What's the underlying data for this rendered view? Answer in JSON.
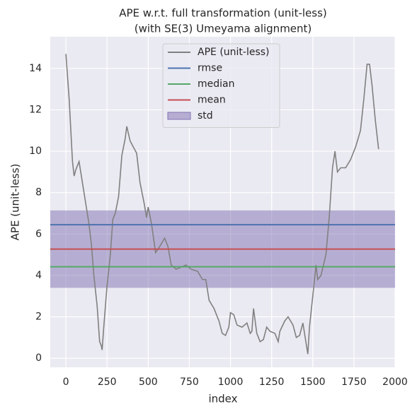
{
  "chart_data": {
    "type": "line",
    "title": [
      "APE w.r.t. full transformation (unit-less)",
      "(with SE(3) Umeyama alignment)"
    ],
    "xlabel": "index",
    "ylabel": "APE (unit-less)",
    "xlim": [
      -95,
      2000
    ],
    "xticks": [
      0,
      250,
      500,
      750,
      1000,
      1250,
      1500,
      1750,
      2000
    ],
    "ylim": [
      -0.44,
      15.53
    ],
    "yticks": [
      0,
      2,
      4,
      6,
      8,
      10,
      12,
      14
    ],
    "grid": true,
    "legend": "upper center",
    "series": [
      {
        "name": "APE (unit-less)",
        "color": "#808080",
        "x": [
          0,
          20,
          40,
          50,
          60,
          80,
          100,
          120,
          140,
          155,
          170,
          190,
          205,
          215,
          220,
          230,
          250,
          270,
          285,
          300,
          320,
          340,
          360,
          370,
          390,
          410,
          430,
          450,
          475,
          490,
          500,
          520,
          545,
          570,
          600,
          620,
          640,
          670,
          700,
          730,
          760,
          800,
          830,
          850,
          870,
          900,
          930,
          950,
          970,
          990,
          1000,
          1020,
          1040,
          1070,
          1100,
          1120,
          1130,
          1140,
          1160,
          1180,
          1200,
          1220,
          1240,
          1270,
          1290,
          1300,
          1330,
          1350,
          1380,
          1400,
          1420,
          1440,
          1460,
          1470,
          1480,
          1500,
          1520,
          1530,
          1550,
          1580,
          1600,
          1620,
          1635,
          1650,
          1670,
          1700,
          1730,
          1760,
          1790,
          1810,
          1830,
          1845,
          1860,
          1880,
          1900
        ],
        "values": [
          14.7,
          12.5,
          9.5,
          8.8,
          9.1,
          9.5,
          8.5,
          7.5,
          6.5,
          5.5,
          4.0,
          2.5,
          0.8,
          0.6,
          0.4,
          1.5,
          3.5,
          5.0,
          6.7,
          7.0,
          7.8,
          9.8,
          10.6,
          11.2,
          10.5,
          10.2,
          9.9,
          8.5,
          7.5,
          6.8,
          7.3,
          6.5,
          5.1,
          5.4,
          5.8,
          5.4,
          4.5,
          4.3,
          4.4,
          4.5,
          4.3,
          4.2,
          3.8,
          3.8,
          2.8,
          2.4,
          1.8,
          1.2,
          1.1,
          1.5,
          2.2,
          2.1,
          1.6,
          1.5,
          1.7,
          1.2,
          1.3,
          2.4,
          1.2,
          0.8,
          0.9,
          1.5,
          1.3,
          1.2,
          0.8,
          1.3,
          1.8,
          2.0,
          1.6,
          1.0,
          1.1,
          1.7,
          0.7,
          0.2,
          1.5,
          3.0,
          4.5,
          3.8,
          4.0,
          5.0,
          6.8,
          9.2,
          10.0,
          9.0,
          9.2,
          9.2,
          9.6,
          10.2,
          11.0,
          12.5,
          14.2,
          14.2,
          13.2,
          11.5,
          10.1
        ]
      },
      {
        "name": "rmse",
        "color": "#4c72b0",
        "value": 6.45
      },
      {
        "name": "median",
        "color": "#55a868",
        "value": 4.42
      },
      {
        "name": "mean",
        "color": "#c44e52",
        "value": 5.27
      }
    ],
    "std": {
      "name": "std",
      "color": "#8172b2",
      "range": [
        3.4,
        7.14
      ]
    }
  }
}
